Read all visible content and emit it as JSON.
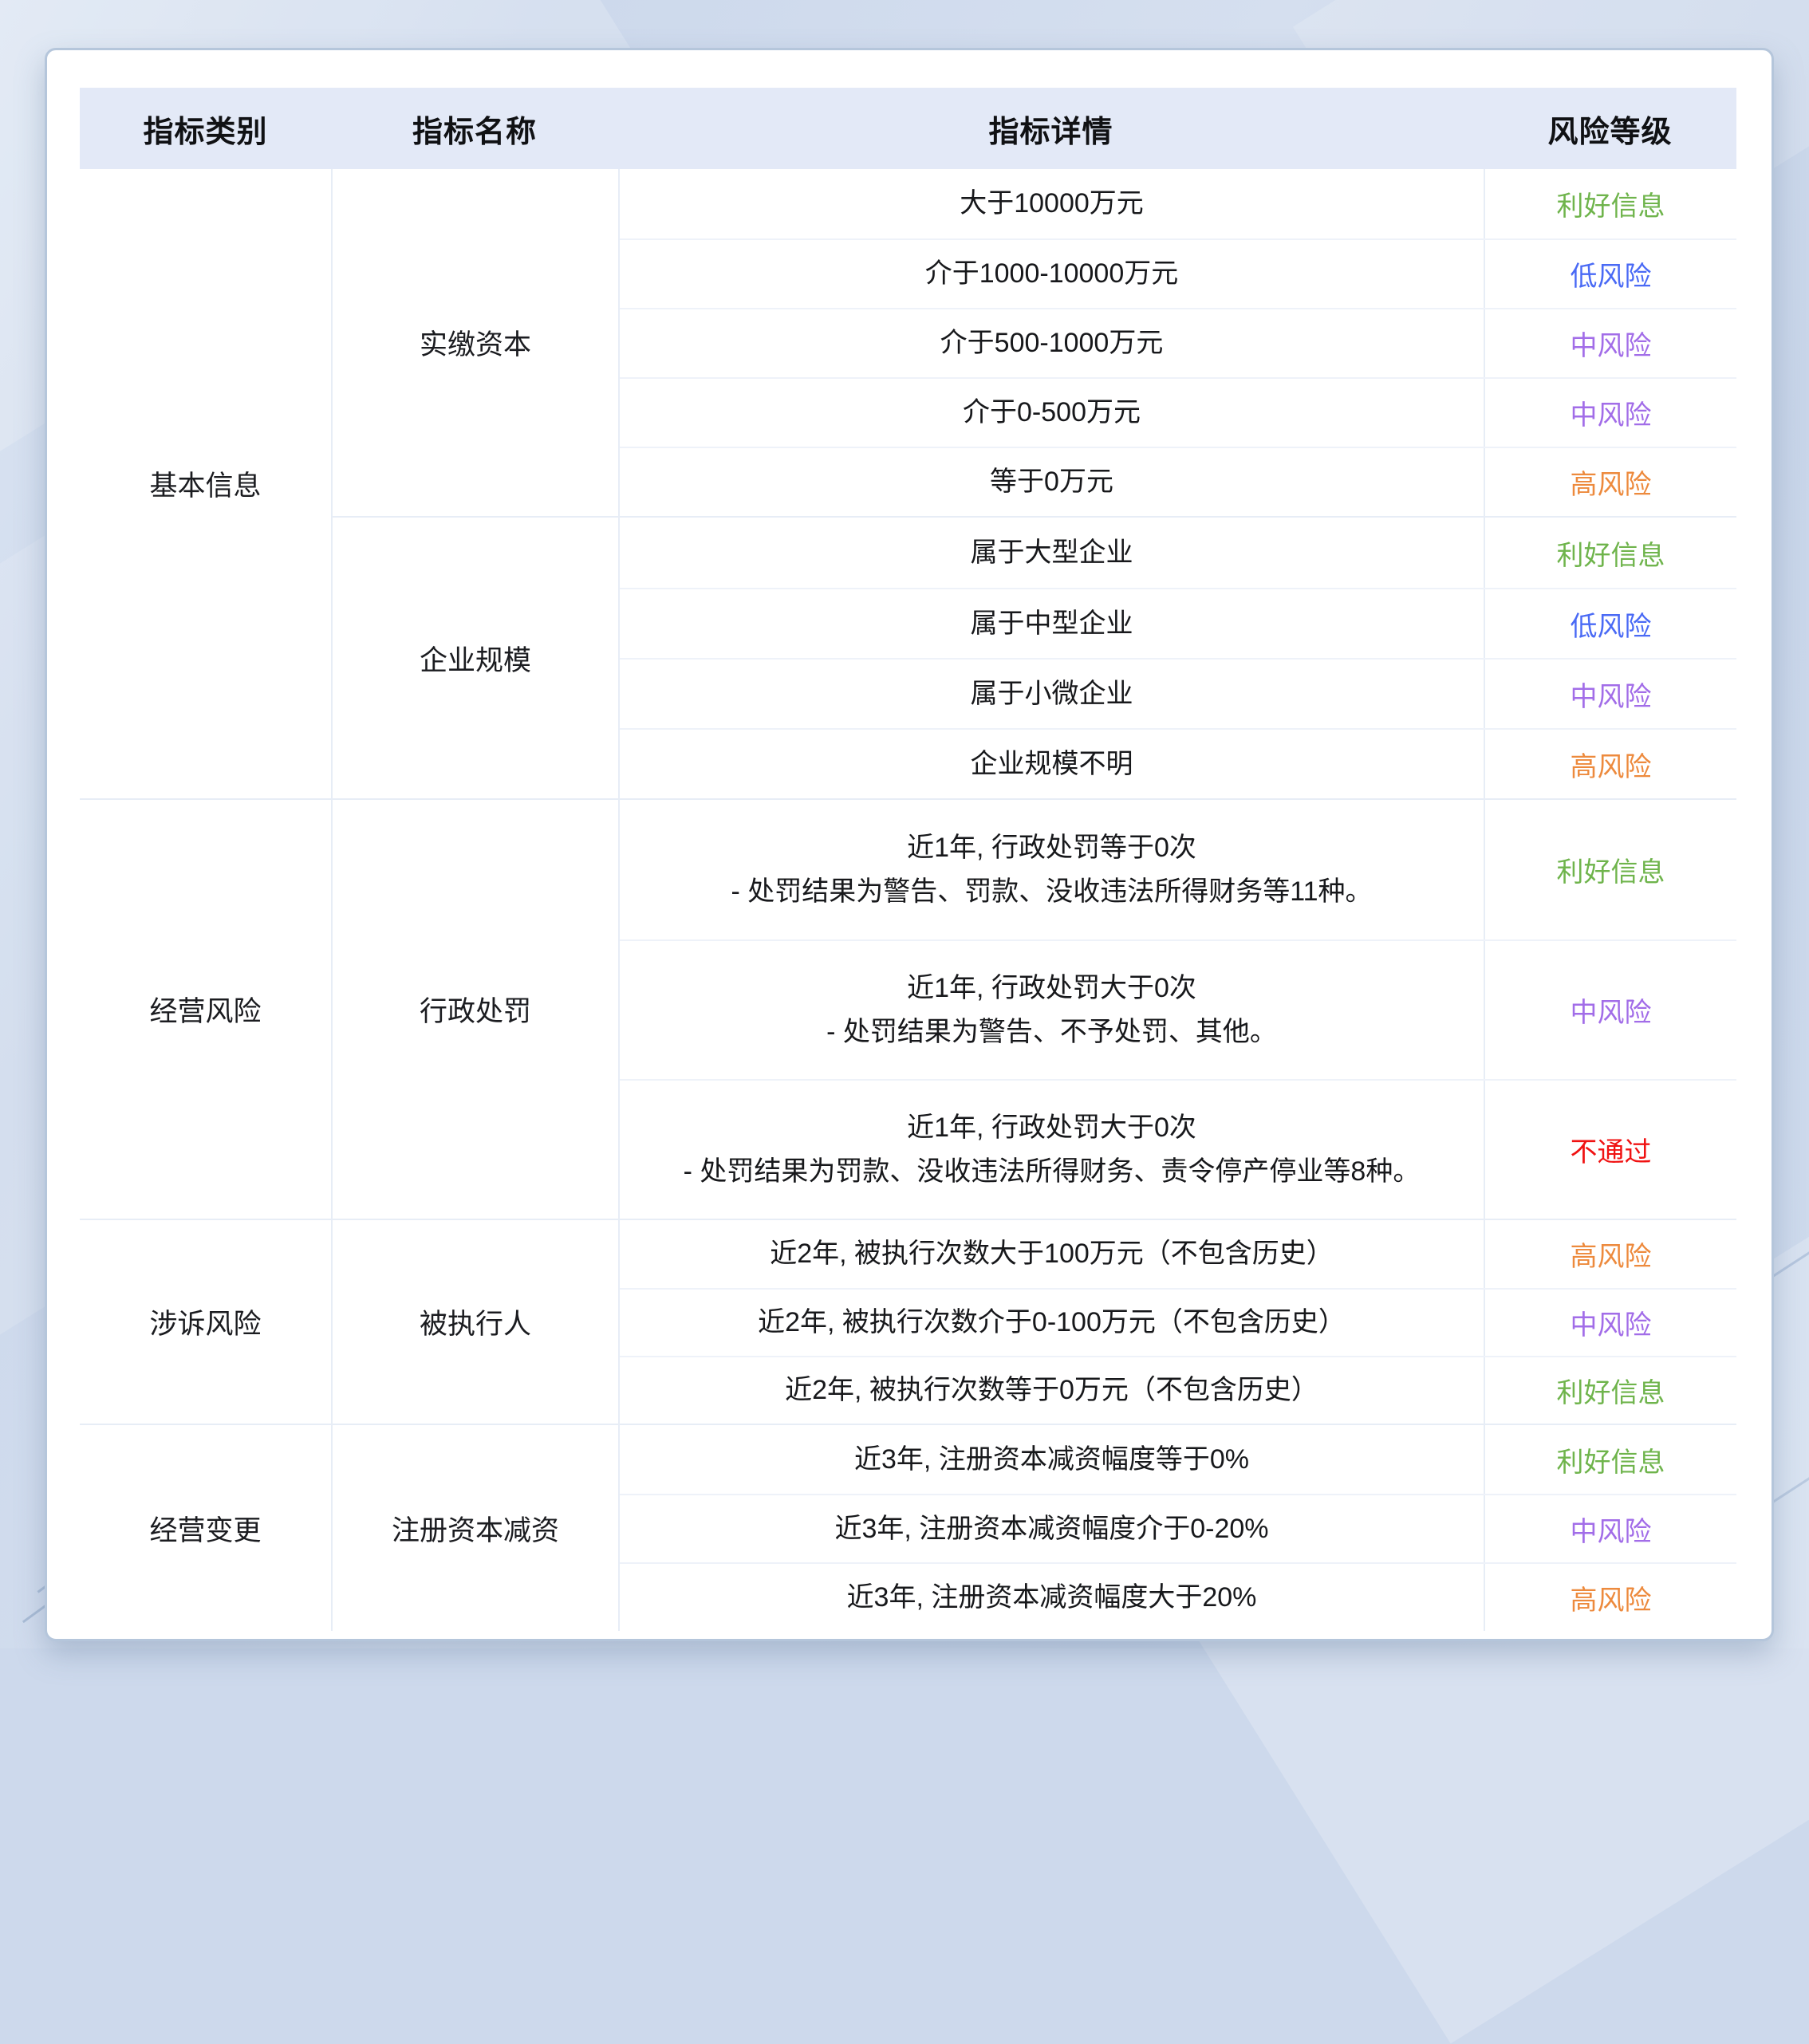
{
  "chart_data": {
    "type": "table",
    "columns": {
      "category": "指标类别",
      "name": "指标名称",
      "detail": "指标详情",
      "risk": "风险等级"
    },
    "risk_colors": {
      "利好信息": "#6fb44c",
      "低风险": "#4a6af5",
      "中风险": "#a26de8",
      "高风险": "#ed8a3d",
      "不通过": "#f01212"
    },
    "groups": [
      {
        "category": "基本信息",
        "indicators": [
          {
            "name": "实缴资本",
            "rows": [
              {
                "lines": [
                  "大于10000万元"
                ],
                "risk": "利好信息"
              },
              {
                "lines": [
                  "介于1000-10000万元"
                ],
                "risk": "低风险"
              },
              {
                "lines": [
                  "介于500-1000万元"
                ],
                "risk": "中风险"
              },
              {
                "lines": [
                  "介于0-500万元"
                ],
                "risk": "中风险"
              },
              {
                "lines": [
                  "等于0万元"
                ],
                "risk": "高风险"
              }
            ]
          },
          {
            "name": "企业规模",
            "rows": [
              {
                "lines": [
                  "属于大型企业"
                ],
                "risk": "利好信息"
              },
              {
                "lines": [
                  "属于中型企业"
                ],
                "risk": "低风险"
              },
              {
                "lines": [
                  "属于小微企业"
                ],
                "risk": "中风险"
              },
              {
                "lines": [
                  "企业规模不明"
                ],
                "risk": "高风险"
              }
            ]
          }
        ]
      },
      {
        "category": "经营风险",
        "indicators": [
          {
            "name": "行政处罚",
            "rows": [
              {
                "lines": [
                  "近1年, 行政处罚等于0次",
                  "- 处罚结果为警告、罚款、没收违法所得财务等11种。"
                ],
                "risk": "利好信息"
              },
              {
                "lines": [
                  "近1年, 行政处罚大于0次",
                  "- 处罚结果为警告、不予处罚、其他。"
                ],
                "risk": "中风险"
              },
              {
                "lines": [
                  "近1年, 行政处罚大于0次",
                  "- 处罚结果为罚款、没收违法所得财务、责令停产停业等8种。"
                ],
                "risk": "不通过"
              }
            ]
          }
        ]
      },
      {
        "category": "涉诉风险",
        "indicators": [
          {
            "name": "被执行人",
            "rows": [
              {
                "lines": [
                  "近2年, 被执行次数大于100万元（不包含历史）"
                ],
                "risk": "高风险"
              },
              {
                "lines": [
                  "近2年, 被执行次数介于0-100万元（不包含历史）"
                ],
                "risk": "中风险"
              },
              {
                "lines": [
                  "近2年, 被执行次数等于0万元（不包含历史）"
                ],
                "risk": "利好信息"
              }
            ]
          }
        ]
      },
      {
        "category": "经营变更",
        "indicators": [
          {
            "name": "注册资本减资",
            "rows": [
              {
                "lines": [
                  "近3年, 注册资本减资幅度等于0%"
                ],
                "risk": "利好信息"
              },
              {
                "lines": [
                  "近3年, 注册资本减资幅度介于0-20%"
                ],
                "risk": "中风险"
              },
              {
                "lines": [
                  "近3年, 注册资本减资幅度大于20%"
                ],
                "risk": "高风险"
              }
            ]
          }
        ]
      }
    ]
  }
}
